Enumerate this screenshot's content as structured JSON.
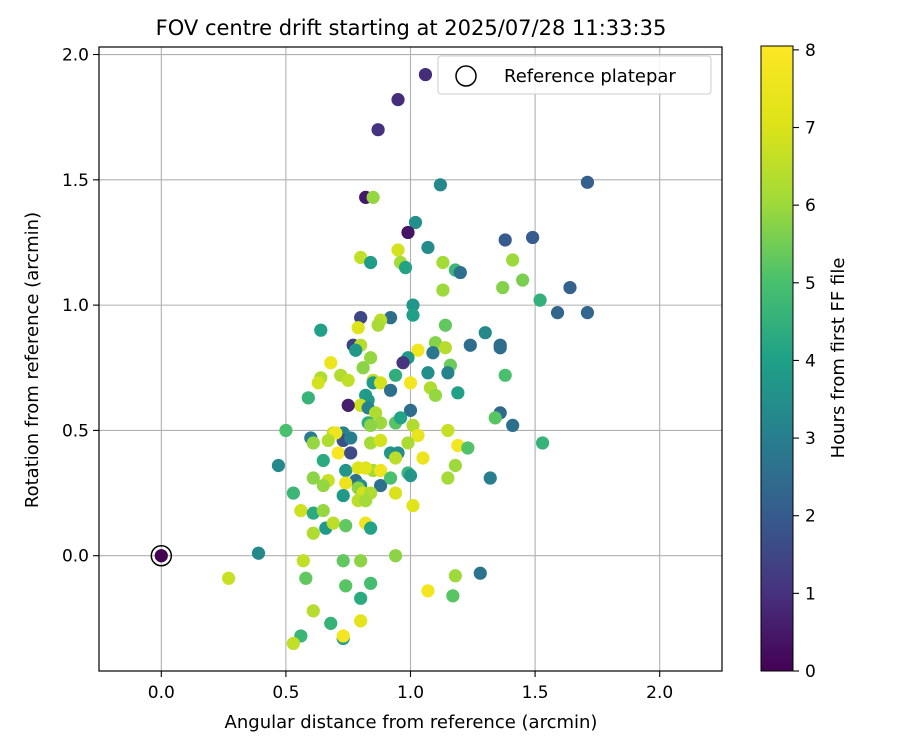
{
  "chart_data": {
    "type": "scatter",
    "title": "FOV centre drift starting at 2025/07/28 11:33:35",
    "xlabel": "Angular distance from reference (arcmin)",
    "ylabel": "Rotation from reference (arcmin)",
    "xlim": [
      -0.25,
      2.25
    ],
    "ylim": [
      -0.46,
      2.03
    ],
    "xticks": [
      0.0,
      0.5,
      1.0,
      1.5,
      2.0
    ],
    "yticks": [
      0.0,
      0.5,
      1.0,
      1.5,
      2.0
    ],
    "xtick_labels": [
      "0.0",
      "0.5",
      "1.0",
      "1.5",
      "2.0"
    ],
    "ytick_labels": [
      "0.0",
      "0.5",
      "1.0",
      "1.5",
      "2.0"
    ],
    "grid": true,
    "legend": {
      "placement": "upper-right",
      "entries": [
        "Reference platepar"
      ]
    },
    "colorbar": {
      "label": "Hours from first FF file",
      "colormap": "viridis",
      "range": [
        0,
        8.05
      ],
      "ticks": [
        0,
        1,
        2,
        3,
        4,
        5,
        6,
        7,
        8
      ],
      "tick_labels": [
        "0",
        "1",
        "2",
        "3",
        "4",
        "5",
        "6",
        "7",
        "8"
      ]
    },
    "reference": {
      "x": 0.0,
      "y": 0.0
    },
    "points": [
      [
        0.95,
        1.82,
        0.9
      ],
      [
        0.87,
        1.7,
        1.0
      ],
      [
        1.71,
        1.49,
        2.1
      ],
      [
        1.12,
        1.48,
        3.3
      ],
      [
        0.82,
        1.43,
        0.5
      ],
      [
        0.85,
        1.43,
        5.9
      ],
      [
        1.02,
        1.33,
        3.5
      ],
      [
        0.99,
        1.29,
        0.4
      ],
      [
        1.49,
        1.27,
        2.0
      ],
      [
        1.38,
        1.26,
        2.0
      ],
      [
        1.07,
        1.23,
        3.4
      ],
      [
        0.95,
        1.22,
        6.9
      ],
      [
        0.8,
        1.19,
        6.6
      ],
      [
        0.84,
        1.17,
        3.9
      ],
      [
        0.96,
        1.17,
        6.1
      ],
      [
        1.13,
        1.17,
        6.1
      ],
      [
        0.98,
        1.15,
        4.1
      ],
      [
        1.18,
        1.14,
        4.7
      ],
      [
        1.2,
        1.13,
        2.6
      ],
      [
        1.41,
        1.18,
        6.0
      ],
      [
        1.45,
        1.1,
        5.6
      ],
      [
        1.37,
        1.07,
        5.7
      ],
      [
        1.13,
        1.06,
        6.0
      ],
      [
        1.64,
        1.07,
        2.2
      ],
      [
        1.52,
        1.02,
        4.5
      ],
      [
        1.59,
        0.97,
        2.3
      ],
      [
        1.71,
        0.97,
        2.3
      ],
      [
        1.01,
        1.0,
        3.7
      ],
      [
        1.01,
        0.96,
        4.0
      ],
      [
        0.8,
        0.95,
        1.5
      ],
      [
        0.92,
        0.95,
        2.5
      ],
      [
        0.88,
        0.94,
        6.5
      ],
      [
        0.87,
        0.92,
        6.2
      ],
      [
        1.14,
        0.92,
        5.3
      ],
      [
        0.64,
        0.9,
        4.0
      ],
      [
        1.3,
        0.89,
        3.3
      ],
      [
        0.79,
        0.91,
        7.1
      ],
      [
        0.77,
        0.84,
        1.4
      ],
      [
        0.8,
        0.84,
        6.4
      ],
      [
        1.1,
        0.85,
        5.7
      ],
      [
        1.14,
        0.83,
        6.4
      ],
      [
        1.24,
        0.84,
        2.5
      ],
      [
        1.36,
        0.84,
        2.5
      ],
      [
        1.36,
        0.83,
        2.5
      ],
      [
        0.78,
        0.82,
        3.8
      ],
      [
        1.09,
        0.81,
        2.8
      ],
      [
        1.03,
        0.82,
        7.7
      ],
      [
        0.84,
        0.79,
        5.9
      ],
      [
        0.99,
        0.79,
        3.8
      ],
      [
        0.68,
        0.77,
        7.5
      ],
      [
        0.97,
        0.77,
        1.1
      ],
      [
        1.16,
        0.76,
        5.4
      ],
      [
        0.81,
        0.75,
        5.8
      ],
      [
        1.07,
        0.73,
        3.5
      ],
      [
        1.15,
        0.73,
        3.1
      ],
      [
        0.94,
        0.72,
        4.4
      ],
      [
        0.72,
        0.72,
        6.3
      ],
      [
        1.38,
        0.72,
        5.0
      ],
      [
        0.64,
        0.71,
        6.3
      ],
      [
        0.85,
        0.7,
        6.6
      ],
      [
        0.85,
        0.69,
        3.8
      ],
      [
        0.88,
        0.69,
        6.9
      ],
      [
        0.75,
        0.7,
        6.6
      ],
      [
        0.63,
        0.69,
        6.9
      ],
      [
        1.0,
        0.69,
        7.7
      ],
      [
        1.08,
        0.67,
        6.3
      ],
      [
        0.92,
        0.66,
        2.6
      ],
      [
        1.1,
        0.64,
        5.9
      ],
      [
        1.19,
        0.65,
        4.0
      ],
      [
        0.82,
        0.64,
        3.9
      ],
      [
        0.59,
        0.63,
        4.6
      ],
      [
        0.83,
        0.62,
        3.8
      ],
      [
        0.8,
        0.6,
        6.8
      ],
      [
        0.75,
        0.6,
        0.6
      ],
      [
        0.83,
        0.59,
        3.1
      ],
      [
        1.0,
        0.58,
        2.5
      ],
      [
        0.86,
        0.57,
        6.3
      ],
      [
        1.36,
        0.57,
        2.4
      ],
      [
        1.34,
        0.55,
        5.2
      ],
      [
        0.83,
        0.53,
        4.4
      ],
      [
        0.94,
        0.53,
        5.2
      ],
      [
        0.96,
        0.55,
        4.1
      ],
      [
        1.41,
        0.52,
        2.6
      ],
      [
        0.88,
        0.53,
        6.0
      ],
      [
        0.84,
        0.52,
        5.8
      ],
      [
        1.01,
        0.52,
        6.3
      ],
      [
        1.15,
        0.5,
        6.7
      ],
      [
        0.5,
        0.5,
        5.0
      ],
      [
        0.69,
        0.49,
        6.6
      ],
      [
        0.73,
        0.49,
        3.1
      ],
      [
        0.73,
        0.46,
        1.7
      ],
      [
        0.7,
        0.49,
        7.6
      ],
      [
        1.03,
        0.48,
        7.4
      ],
      [
        0.6,
        0.47,
        2.9
      ],
      [
        0.67,
        0.46,
        6.3
      ],
      [
        0.76,
        0.47,
        3.0
      ],
      [
        0.61,
        0.45,
        5.9
      ],
      [
        0.84,
        0.45,
        6.1
      ],
      [
        0.88,
        0.46,
        6.9
      ],
      [
        0.99,
        0.45,
        6.2
      ],
      [
        1.53,
        0.45,
        4.6
      ],
      [
        1.19,
        0.44,
        7.7
      ],
      [
        1.23,
        0.43,
        5.1
      ],
      [
        0.92,
        0.41,
        3.7
      ],
      [
        0.95,
        0.41,
        3.5
      ],
      [
        0.71,
        0.41,
        7.9
      ],
      [
        0.76,
        0.41,
        1.6
      ],
      [
        0.94,
        0.39,
        6.5
      ],
      [
        1.05,
        0.39,
        7.5
      ],
      [
        0.47,
        0.36,
        3.3
      ],
      [
        0.65,
        0.38,
        4.3
      ],
      [
        1.18,
        0.36,
        6.0
      ],
      [
        0.74,
        0.34,
        3.7
      ],
      [
        0.85,
        0.34,
        6.1
      ],
      [
        0.79,
        0.35,
        7.1
      ],
      [
        0.82,
        0.35,
        7.2
      ],
      [
        0.88,
        0.34,
        7.6
      ],
      [
        0.99,
        0.33,
        4.7
      ],
      [
        1.0,
        0.32,
        3.7
      ],
      [
        0.61,
        0.31,
        5.8
      ],
      [
        0.67,
        0.3,
        6.7
      ],
      [
        1.32,
        0.31,
        3.0
      ],
      [
        1.15,
        0.31,
        6.1
      ],
      [
        0.78,
        0.3,
        2.6
      ],
      [
        0.8,
        0.28,
        3.5
      ],
      [
        0.88,
        0.28,
        2.6
      ],
      [
        0.92,
        0.31,
        5.0
      ],
      [
        0.65,
        0.28,
        5.9
      ],
      [
        0.74,
        0.29,
        7.5
      ],
      [
        0.79,
        0.27,
        5.8
      ],
      [
        0.81,
        0.25,
        6.9
      ],
      [
        0.73,
        0.24,
        3.8
      ],
      [
        0.84,
        0.25,
        6.3
      ],
      [
        0.94,
        0.25,
        7.0
      ],
      [
        0.53,
        0.25,
        4.7
      ],
      [
        0.79,
        0.22,
        6.5
      ],
      [
        0.82,
        0.22,
        6.1
      ],
      [
        1.01,
        0.2,
        7.2
      ],
      [
        0.56,
        0.18,
        6.8
      ],
      [
        0.61,
        0.17,
        4.3
      ],
      [
        0.65,
        0.18,
        5.9
      ],
      [
        0.66,
        0.11,
        3.8
      ],
      [
        0.69,
        0.13,
        6.5
      ],
      [
        0.74,
        0.12,
        5.3
      ],
      [
        0.82,
        0.13,
        7.6
      ],
      [
        0.84,
        0.11,
        4.1
      ],
      [
        0.61,
        0.09,
        6.3
      ],
      [
        0.39,
        0.01,
        3.3
      ],
      [
        0.57,
        -0.02,
        6.6
      ],
      [
        0.73,
        -0.02,
        5.3
      ],
      [
        0.8,
        -0.02,
        5.8
      ],
      [
        0.94,
        0.0,
        5.8
      ],
      [
        1.17,
        -0.16,
        5.2
      ],
      [
        1.28,
        -0.07,
        2.7
      ],
      [
        0.27,
        -0.09,
        6.7
      ],
      [
        0.58,
        -0.09,
        5.3
      ],
      [
        0.74,
        -0.12,
        5.2
      ],
      [
        0.84,
        -0.11,
        4.9
      ],
      [
        1.07,
        -0.14,
        7.7
      ],
      [
        1.18,
        -0.08,
        6.0
      ],
      [
        0.8,
        -0.17,
        4.3
      ],
      [
        0.61,
        -0.22,
        6.4
      ],
      [
        0.68,
        -0.27,
        4.6
      ],
      [
        0.8,
        -0.26,
        7.3
      ],
      [
        0.56,
        -0.32,
        4.7
      ],
      [
        0.53,
        -0.35,
        6.6
      ],
      [
        0.73,
        -0.33,
        3.9
      ],
      [
        0.73,
        -0.32,
        7.8
      ],
      [
        1.06,
        1.92,
        0.9
      ]
    ]
  }
}
